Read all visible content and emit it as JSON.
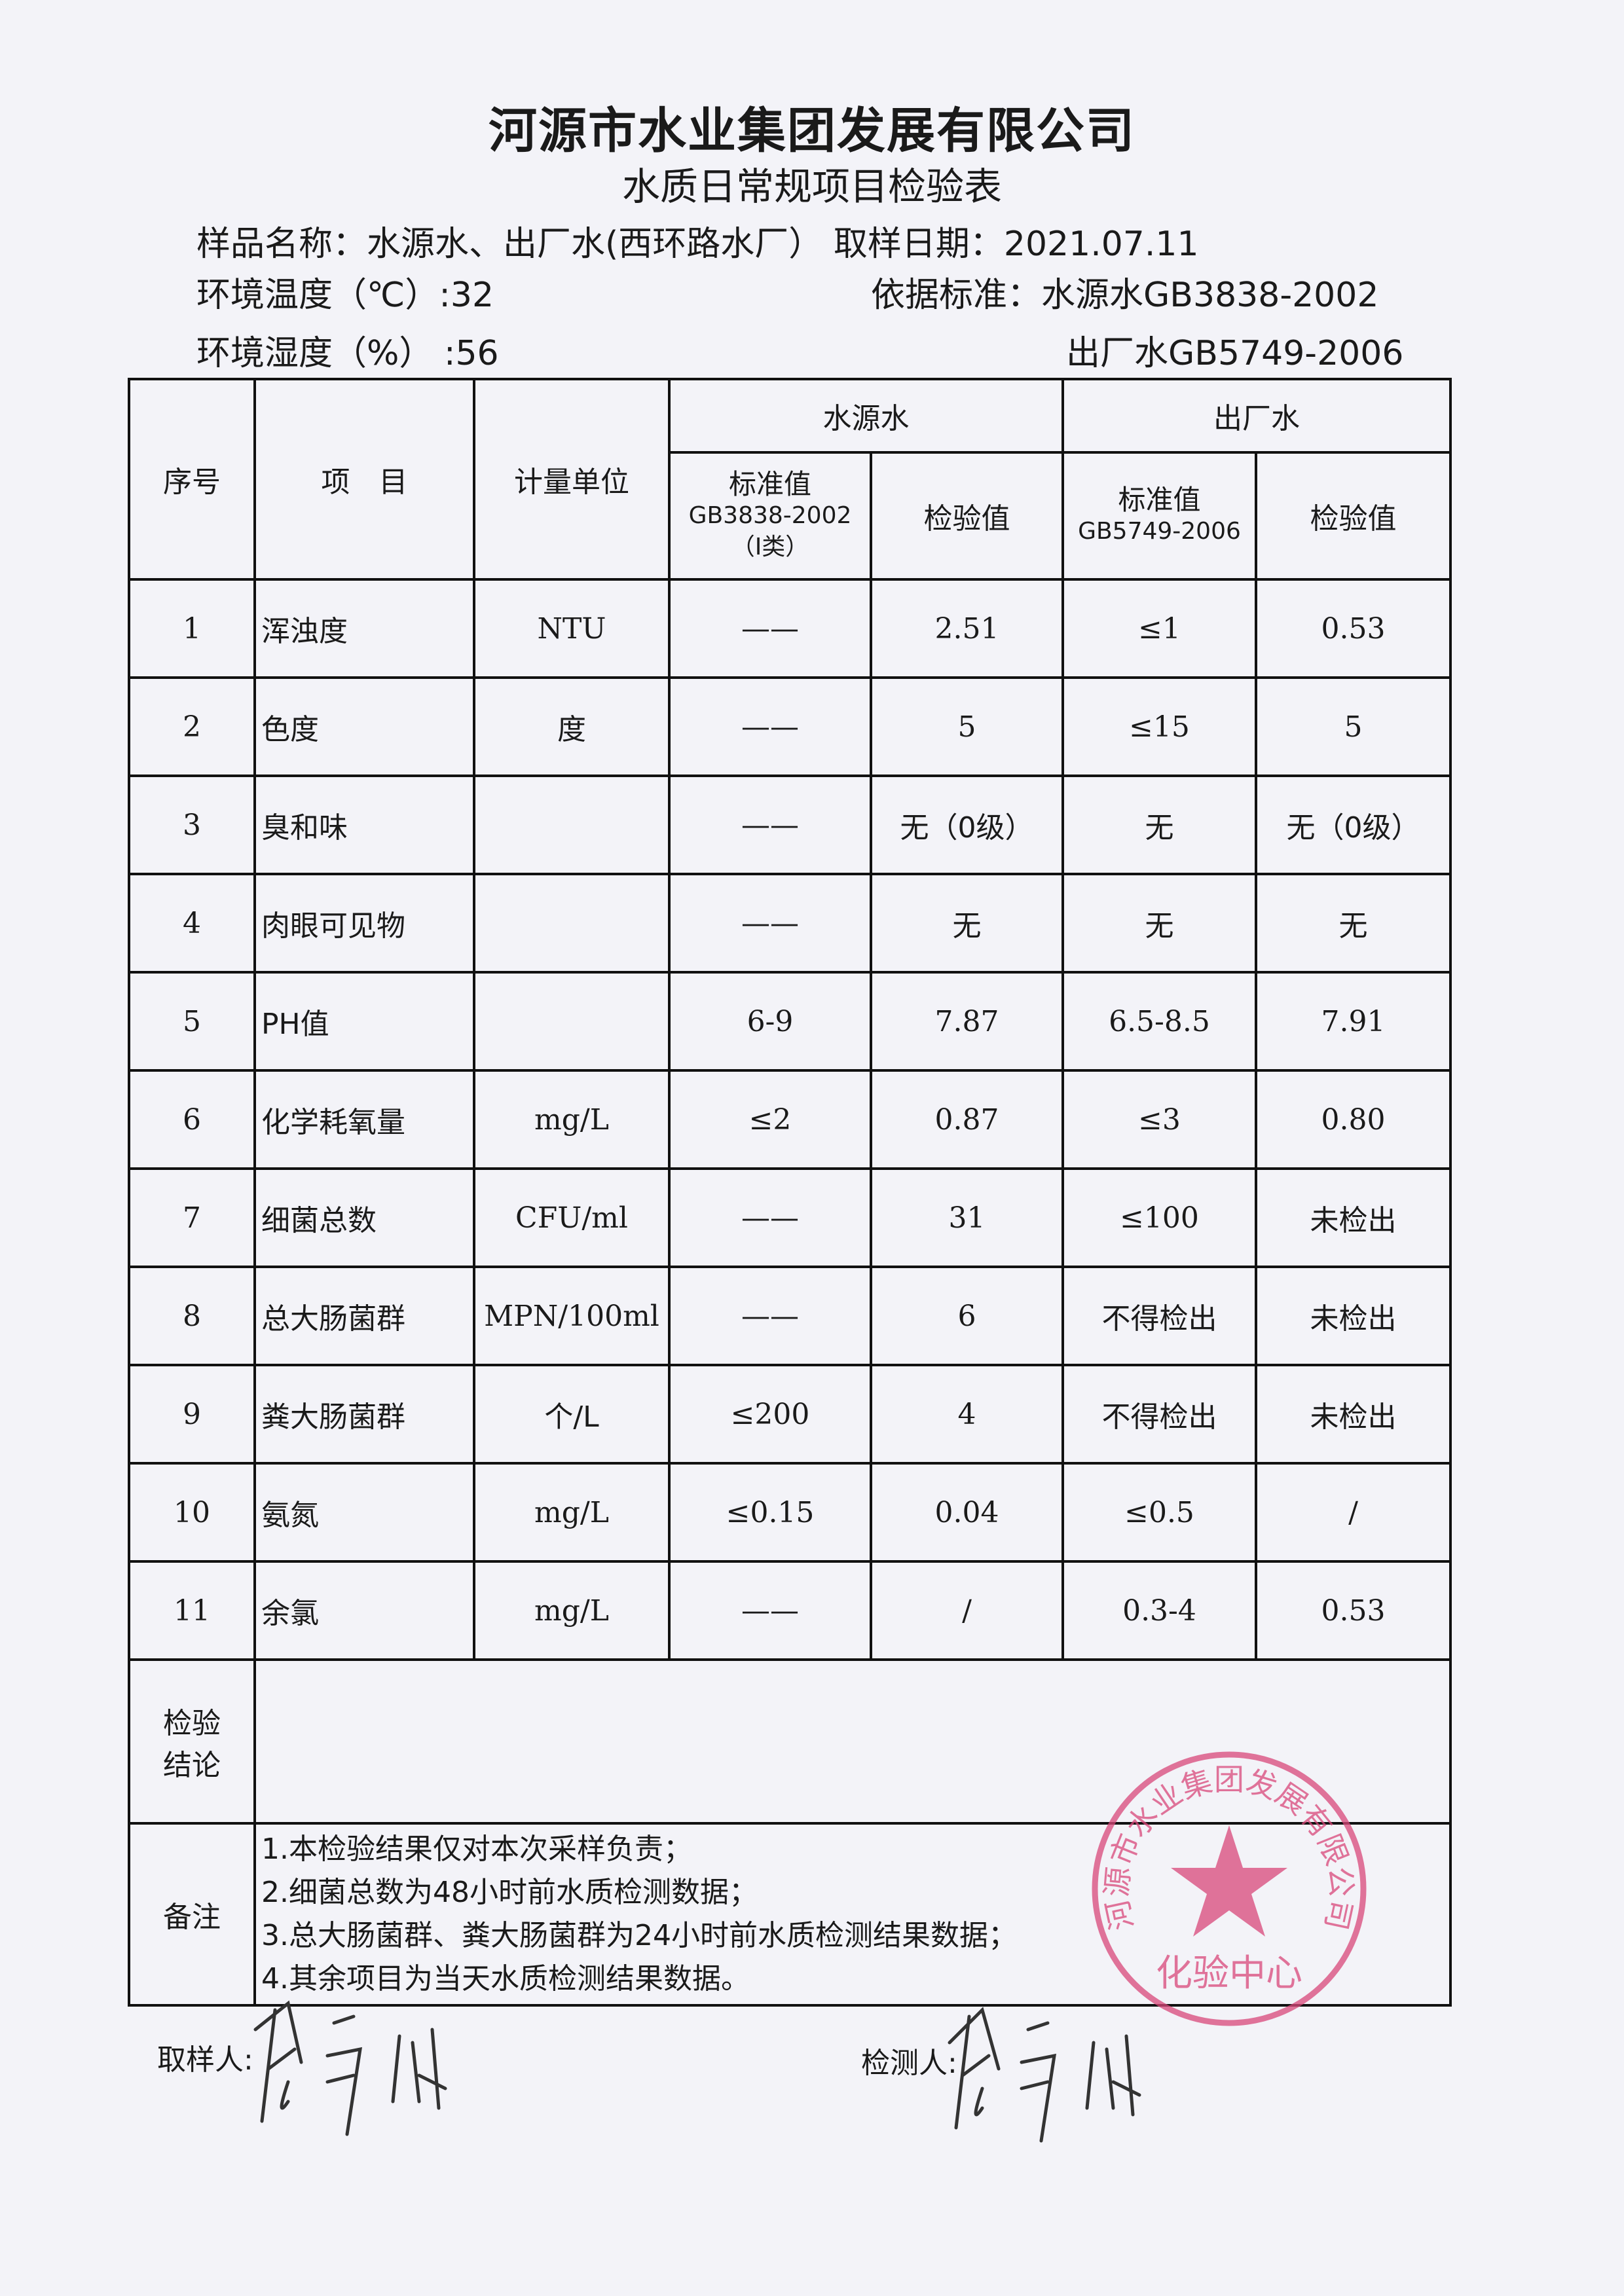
{
  "header": {
    "company": "河源市水业集团发展有限公司",
    "form_title": "水质日常规项目检验表",
    "sample_name_label": "样品名称：",
    "sample_name": "水源水、出厂水(西环路水厂）",
    "sample_date_label": "取样日期：",
    "sample_date": "2021.07.11",
    "temperature_label": "环境温度（℃）:",
    "temperature": "32",
    "humidity_label": "环境湿度（%）  :",
    "humidity": "56",
    "standard_label": "依据标准：",
    "standard_source": "水源水GB3838-2002",
    "standard_output": "出厂水GB5749-2006"
  },
  "table": {
    "headers": {
      "no": "序号",
      "item": "项　目",
      "unit": "计量单位",
      "source_group": "水源水",
      "output_group": "出厂水",
      "source_std_line1": "标准值",
      "source_std_line2": "GB3838-2002",
      "source_std_line3": "（Ⅰ类）",
      "source_val": "检验值",
      "output_std_line1": "标准值",
      "output_std_line2": "GB5749-2006",
      "output_val": "检验值"
    },
    "rows": [
      {
        "no": "1",
        "item": "浑浊度",
        "unit": "NTU",
        "src_std": "——",
        "src_val": "2.51",
        "out_std": "≤1",
        "out_val": "0.53"
      },
      {
        "no": "2",
        "item": "色度",
        "unit": "度",
        "src_std": "——",
        "src_val": "5",
        "out_std": "≤15",
        "out_val": "5"
      },
      {
        "no": "3",
        "item": "臭和味",
        "unit": "",
        "src_std": "——",
        "src_val": "无（0级）",
        "out_std": "无",
        "out_val": "无（0级）"
      },
      {
        "no": "4",
        "item": "肉眼可见物",
        "unit": "",
        "src_std": "——",
        "src_val": "无",
        "out_std": "无",
        "out_val": "无"
      },
      {
        "no": "5",
        "item": "PH值",
        "unit": "",
        "src_std": "6-9",
        "src_val": "7.87",
        "out_std": "6.5-8.5",
        "out_val": "7.91"
      },
      {
        "no": "6",
        "item": "化学耗氧量",
        "unit": "mg/L",
        "src_std": "≤2",
        "src_val": "0.87",
        "out_std": "≤3",
        "out_val": "0.80"
      },
      {
        "no": "7",
        "item": "细菌总数",
        "unit": "CFU/ml",
        "src_std": "——",
        "src_val": "31",
        "out_std": "≤100",
        "out_val": "未检出"
      },
      {
        "no": "8",
        "item": "总大肠菌群",
        "unit": "MPN/100ml",
        "src_std": "——",
        "src_val": "6",
        "out_std": "不得检出",
        "out_val": "未检出"
      },
      {
        "no": "9",
        "item": "粪大肠菌群",
        "unit": "个/L",
        "src_std": "≤200",
        "src_val": "4",
        "out_std": "不得检出",
        "out_val": "未检出"
      },
      {
        "no": "10",
        "item": "氨氮",
        "unit": "mg/L",
        "src_std": "≤0.15",
        "src_val": "0.04",
        "out_std": "≤0.5",
        "out_val": "/"
      },
      {
        "no": "11",
        "item": "余氯",
        "unit": "mg/L",
        "src_std": "——",
        "src_val": "/",
        "out_std": "0.3-4",
        "out_val": "0.53"
      }
    ],
    "conclusion_label_1": "检验",
    "conclusion_label_2": "结论",
    "conclusion": "",
    "notes_label": "备注",
    "notes": [
      "1.本检验结果仅对本次采样负责；",
      "2.细菌总数为48小时前水质检测数据；",
      "3.总大肠菌群、粪大肠菌群为24小时前水质检测结果数据；",
      "4.其余项目为当天水质检测结果数据。"
    ]
  },
  "footer": {
    "sampler_label": "取样人:",
    "tester_label": "检测人:",
    "signature": "李言成"
  },
  "stamp": {
    "text": "河源市水业集团发展有限公司",
    "center_text": "化验中心",
    "color": "#d9477a"
  }
}
